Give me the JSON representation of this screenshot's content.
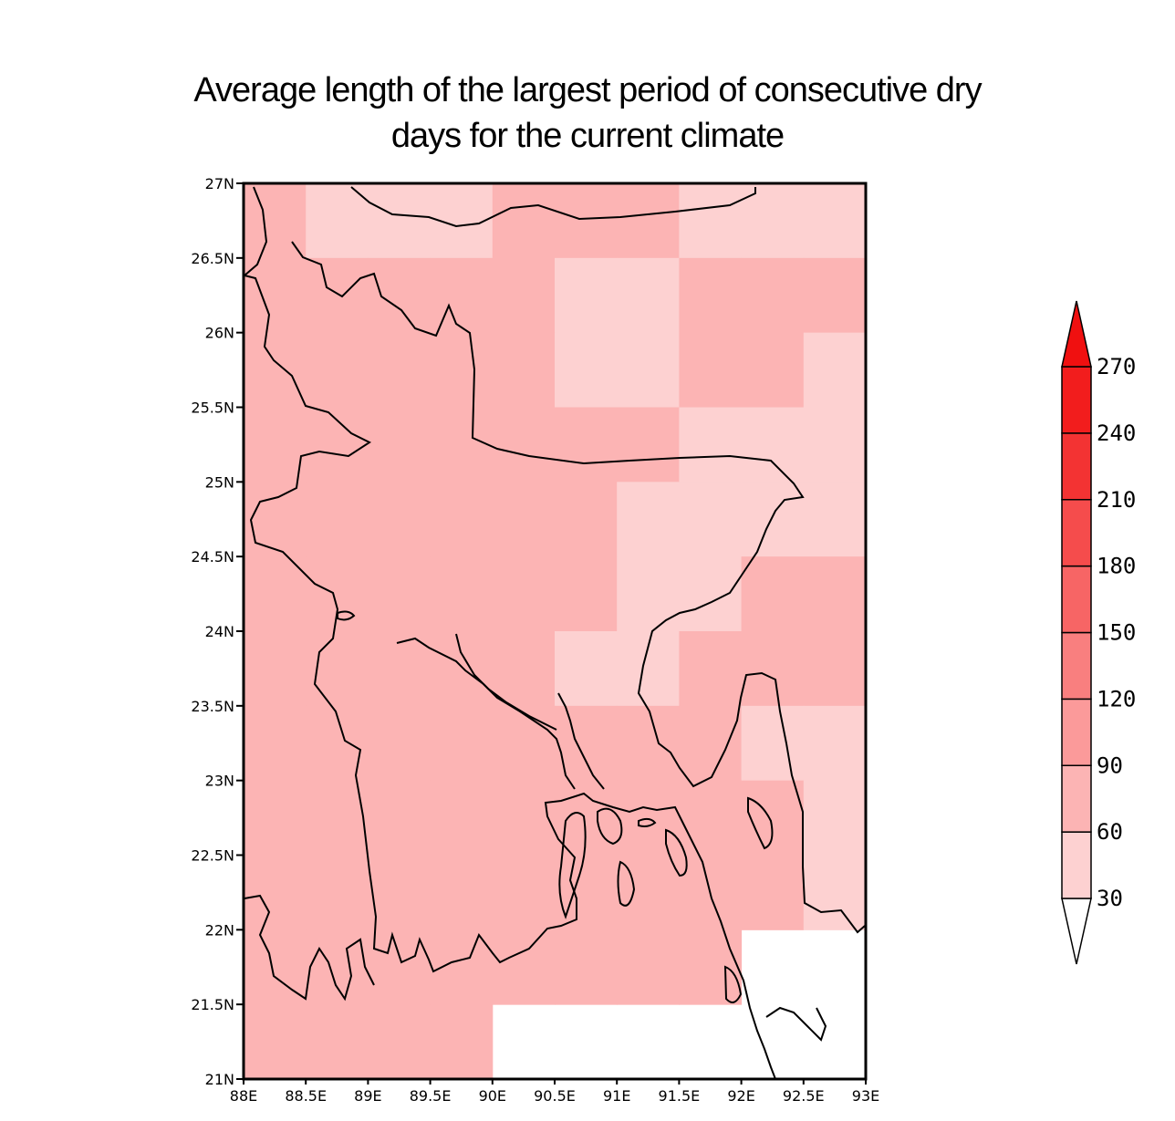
{
  "title": {
    "line1": "Average length of the largest period of consecutive dry",
    "line2": "days for the current climate"
  },
  "map": {
    "lon_range": [
      88,
      93
    ],
    "lat_range": [
      21,
      27
    ],
    "x_ticks": [
      "88E",
      "88.5E",
      "89E",
      "89.5E",
      "90E",
      "90.5E",
      "91E",
      "91.5E",
      "92E",
      "92.5E",
      "93E"
    ],
    "y_ticks": [
      "21N",
      "21.5N",
      "22N",
      "22.5N",
      "23N",
      "23.5N",
      "24N",
      "24.5N",
      "25N",
      "25.5N",
      "26N",
      "26.5N",
      "27N"
    ],
    "grid_cell_degrees": 0.5,
    "class_colors": {
      "1": "#fdd1d1",
      "2": "#fcb4b4"
    },
    "grid_rows_north_to_south": [
      "2111222111",
      "2222211222",
      "2222211221",
      "2222222111",
      "2222221111",
      "2222221122",
      "2222211222",
      "2222222211",
      "2222222221",
      "2222222221",
      "22222222--",
      "2222------"
    ],
    "grid_note": "Each row lists cells west to east starting at 88E; '-' = no data (white)."
  },
  "colorbar": {
    "labels": [
      "30",
      "60",
      "90",
      "120",
      "150",
      "180",
      "210",
      "240",
      "270"
    ],
    "colors": [
      "#fdd1d1",
      "#fcb4b4",
      "#fb9a9a",
      "#f97f7f",
      "#f76565",
      "#f54c4c",
      "#f33333",
      "#f21d1d"
    ],
    "upper_arrow_color": "#f01010",
    "lower_arrow_color": "#ffffff"
  }
}
